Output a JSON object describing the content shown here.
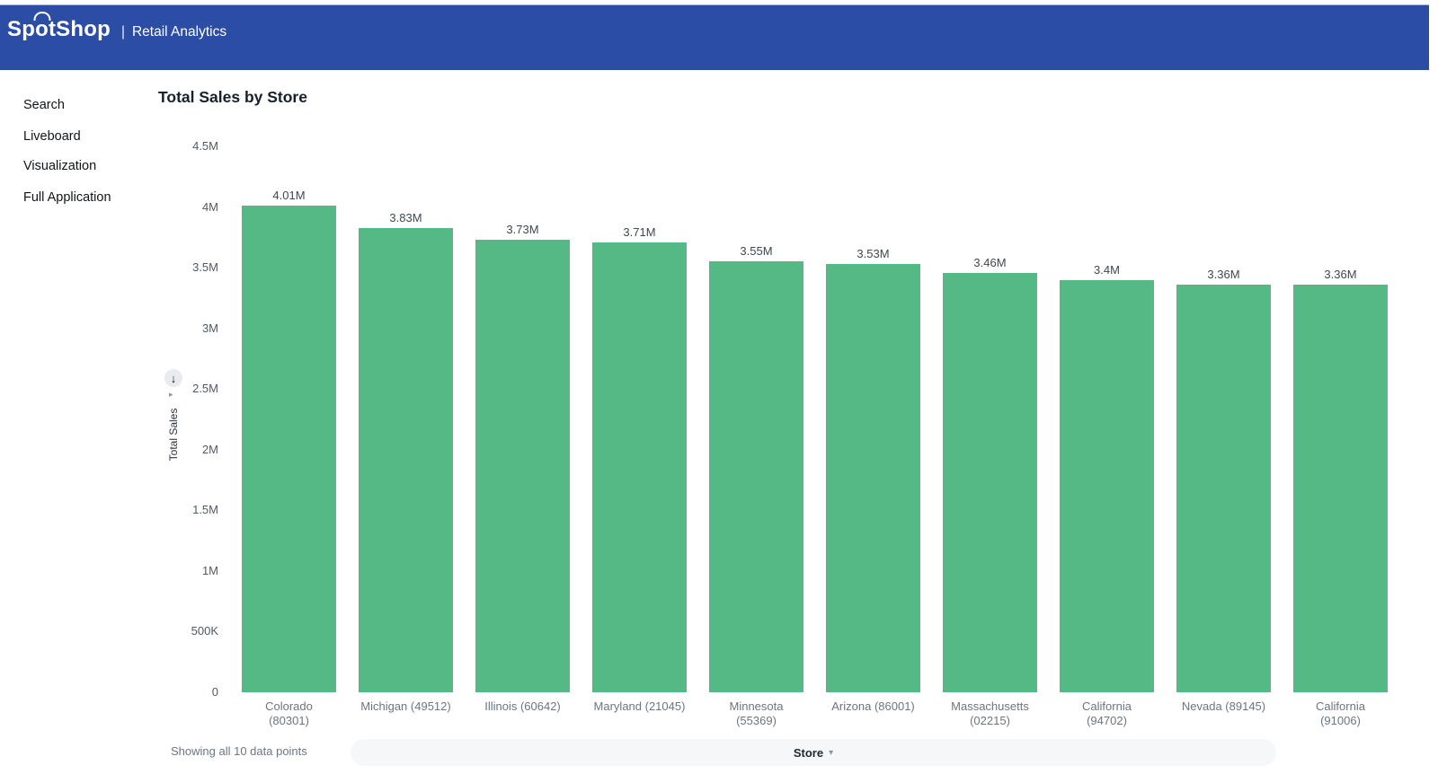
{
  "header": {
    "logo_prefix": "Sp",
    "logo_o": "o",
    "logo_suffix": "tShop",
    "separator": "|",
    "subtitle": "Retail Analytics",
    "bg_color": "#2b4da6"
  },
  "sidebar": {
    "items": [
      {
        "label": "Search"
      },
      {
        "label": "Liveboard"
      },
      {
        "label": "Visualization"
      },
      {
        "label": "Full Application"
      }
    ]
  },
  "chart": {
    "title": "Total Sales by Store",
    "y_axis_title": "Total Sales",
    "footer_note": "Showing all 10 data points",
    "x_axis_field": "Store",
    "bar_color": "#55b985"
  },
  "icons": {
    "axis_menu_arrow": "↓",
    "axis_expander": "▸",
    "store_chevron": "▾"
  },
  "chart_data": {
    "type": "bar",
    "title": "Total Sales by Store",
    "xlabel": "Store",
    "ylabel": "Total Sales",
    "categories": [
      "Colorado (80301)",
      "Michigan (49512)",
      "Illinois (60642)",
      "Maryland (21045)",
      "Minnesota (55369)",
      "Arizona (86001)",
      "Massachusetts (02215)",
      "California (94702)",
      "Nevada (89145)",
      "California (91006)"
    ],
    "category_lines": [
      [
        "Colorado",
        "(80301)"
      ],
      [
        "Michigan (49512)"
      ],
      [
        "Illinois (60642)"
      ],
      [
        "Maryland (21045)"
      ],
      [
        "Minnesota",
        "(55369)"
      ],
      [
        "Arizona (86001)"
      ],
      [
        "Massachusetts",
        "(02215)"
      ],
      [
        "California",
        "(94702)"
      ],
      [
        "Nevada (89145)"
      ],
      [
        "California",
        "(91006)"
      ]
    ],
    "values": [
      4010000,
      3830000,
      3730000,
      3710000,
      3550000,
      3530000,
      3460000,
      3400000,
      3360000,
      3360000
    ],
    "value_labels": [
      "4.01M",
      "3.83M",
      "3.73M",
      "3.71M",
      "3.55M",
      "3.53M",
      "3.46M",
      "3.4M",
      "3.36M",
      "3.36M"
    ],
    "yticks": {
      "labels": [
        "0",
        "500K",
        "1M",
        "1.5M",
        "2M",
        "2.5M",
        "3M",
        "3.5M",
        "4M",
        "4.5M"
      ],
      "values": [
        0,
        500000,
        1000000,
        1500000,
        2000000,
        2500000,
        3000000,
        3500000,
        4000000,
        4500000
      ]
    },
    "ylim": [
      0,
      4500000
    ],
    "grid": false,
    "legend": false,
    "bar_color": "#55b985"
  }
}
